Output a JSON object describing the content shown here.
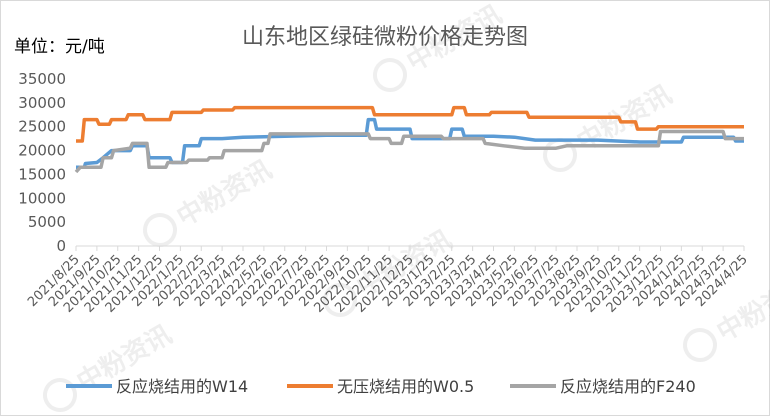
{
  "watermark": "中粉资讯",
  "chart_data": {
    "type": "line",
    "title": "山东地区绿硅微粉价格走势图",
    "unit_label": "单位：元/吨",
    "ylim": [
      0,
      35000
    ],
    "yticks": [
      0,
      5000,
      10000,
      15000,
      20000,
      25000,
      30000,
      35000
    ],
    "xlabels": [
      "2021/8/25",
      "2021/9/25",
      "2021/10/25",
      "2021/11/25",
      "2021/12/25",
      "2022/1/25",
      "2022/2/25",
      "2022/3/25",
      "2022/4/25",
      "2022/5/25",
      "2022/6/25",
      "2022/7/25",
      "2022/8/25",
      "2022/9/25",
      "2022/10/25",
      "2022/11/25",
      "2022/12/25",
      "2023/1/25",
      "2023/2/25",
      "2023/3/25",
      "2023/4/25",
      "2023/5/25",
      "2023/6/25",
      "2023/7/25",
      "2023/8/25",
      "2023/9/25",
      "2023/10/25",
      "2023/11/25",
      "2023/12/25",
      "2024/1/25",
      "2024/2/25",
      "2024/3/25",
      "2024/4/25"
    ],
    "grid": false,
    "legend_position": "bottom",
    "series": [
      {
        "name": "反应烧结用的W14",
        "color": "#5B9BD5",
        "points": [
          [
            0,
            16500
          ],
          [
            0.4,
            16500
          ],
          [
            0.45,
            17300
          ],
          [
            1,
            17500
          ],
          [
            1.3,
            18500
          ],
          [
            1.7,
            20000
          ],
          [
            2.6,
            20000
          ],
          [
            2.7,
            21000
          ],
          [
            3.4,
            21000
          ],
          [
            3.5,
            18500
          ],
          [
            4.5,
            18500
          ],
          [
            4.6,
            17500
          ],
          [
            5.1,
            17500
          ],
          [
            5.2,
            21000
          ],
          [
            5.9,
            21000
          ],
          [
            6,
            22500
          ],
          [
            7,
            22500
          ],
          [
            8,
            22800
          ],
          [
            10,
            23000
          ],
          [
            12,
            23200
          ],
          [
            13.9,
            23200
          ],
          [
            14,
            26500
          ],
          [
            14.3,
            26500
          ],
          [
            14.4,
            24500
          ],
          [
            16,
            24500
          ],
          [
            16.1,
            22500
          ],
          [
            17.9,
            22500
          ],
          [
            18,
            24500
          ],
          [
            18.5,
            24500
          ],
          [
            18.6,
            23000
          ],
          [
            20,
            23000
          ],
          [
            21,
            22800
          ],
          [
            22,
            22200
          ],
          [
            25,
            22200
          ],
          [
            27,
            21800
          ],
          [
            29,
            21800
          ],
          [
            29.1,
            22800
          ],
          [
            31.5,
            22800
          ],
          [
            31.6,
            22000
          ],
          [
            32,
            22000
          ]
        ]
      },
      {
        "name": "无压烧结用的W0.5",
        "color": "#ED7D31",
        "points": [
          [
            0,
            22000
          ],
          [
            0.3,
            22000
          ],
          [
            0.4,
            26500
          ],
          [
            1,
            26500
          ],
          [
            1.1,
            25500
          ],
          [
            1.6,
            25500
          ],
          [
            1.7,
            26500
          ],
          [
            2.4,
            26500
          ],
          [
            2.5,
            27500
          ],
          [
            3.2,
            27500
          ],
          [
            3.3,
            26500
          ],
          [
            4.5,
            26500
          ],
          [
            4.6,
            28000
          ],
          [
            6,
            28000
          ],
          [
            6.1,
            28500
          ],
          [
            7.5,
            28500
          ],
          [
            7.6,
            29000
          ],
          [
            14.2,
            29000
          ],
          [
            14.3,
            27500
          ],
          [
            18,
            27500
          ],
          [
            18.1,
            29000
          ],
          [
            18.6,
            29000
          ],
          [
            18.7,
            27500
          ],
          [
            19.8,
            27500
          ],
          [
            19.9,
            28000
          ],
          [
            21.6,
            28000
          ],
          [
            21.7,
            27000
          ],
          [
            26,
            27000
          ],
          [
            26.1,
            26000
          ],
          [
            26.8,
            26000
          ],
          [
            26.9,
            24500
          ],
          [
            27.8,
            24500
          ],
          [
            27.9,
            25000
          ],
          [
            32,
            25000
          ]
        ]
      },
      {
        "name": "反应烧结用的F240",
        "color": "#A5A5A5",
        "points": [
          [
            0,
            15500
          ],
          [
            0.2,
            16500
          ],
          [
            1.2,
            16500
          ],
          [
            1.3,
            18500
          ],
          [
            1.7,
            18500
          ],
          [
            1.8,
            20000
          ],
          [
            2.6,
            20500
          ],
          [
            2.7,
            21500
          ],
          [
            3.4,
            21500
          ],
          [
            3.5,
            16500
          ],
          [
            4.3,
            16500
          ],
          [
            4.4,
            17500
          ],
          [
            5.3,
            17500
          ],
          [
            5.4,
            18000
          ],
          [
            6.3,
            18000
          ],
          [
            6.4,
            18500
          ],
          [
            7,
            18500
          ],
          [
            7.1,
            20000
          ],
          [
            8.9,
            20000
          ],
          [
            9,
            21500
          ],
          [
            9.2,
            21500
          ],
          [
            9.3,
            23500
          ],
          [
            14,
            23500
          ],
          [
            14.1,
            22500
          ],
          [
            15,
            22500
          ],
          [
            15.1,
            21500
          ],
          [
            15.6,
            21500
          ],
          [
            15.7,
            23000
          ],
          [
            17.5,
            23000
          ],
          [
            17.6,
            22500
          ],
          [
            19.5,
            22500
          ],
          [
            19.6,
            21500
          ],
          [
            20.5,
            21000
          ],
          [
            21.5,
            20500
          ],
          [
            23,
            20500
          ],
          [
            23.5,
            21000
          ],
          [
            26,
            21000
          ],
          [
            27.9,
            21000
          ],
          [
            28,
            24000
          ],
          [
            31,
            24000
          ],
          [
            31.1,
            22500
          ],
          [
            32,
            22500
          ]
        ]
      }
    ]
  }
}
